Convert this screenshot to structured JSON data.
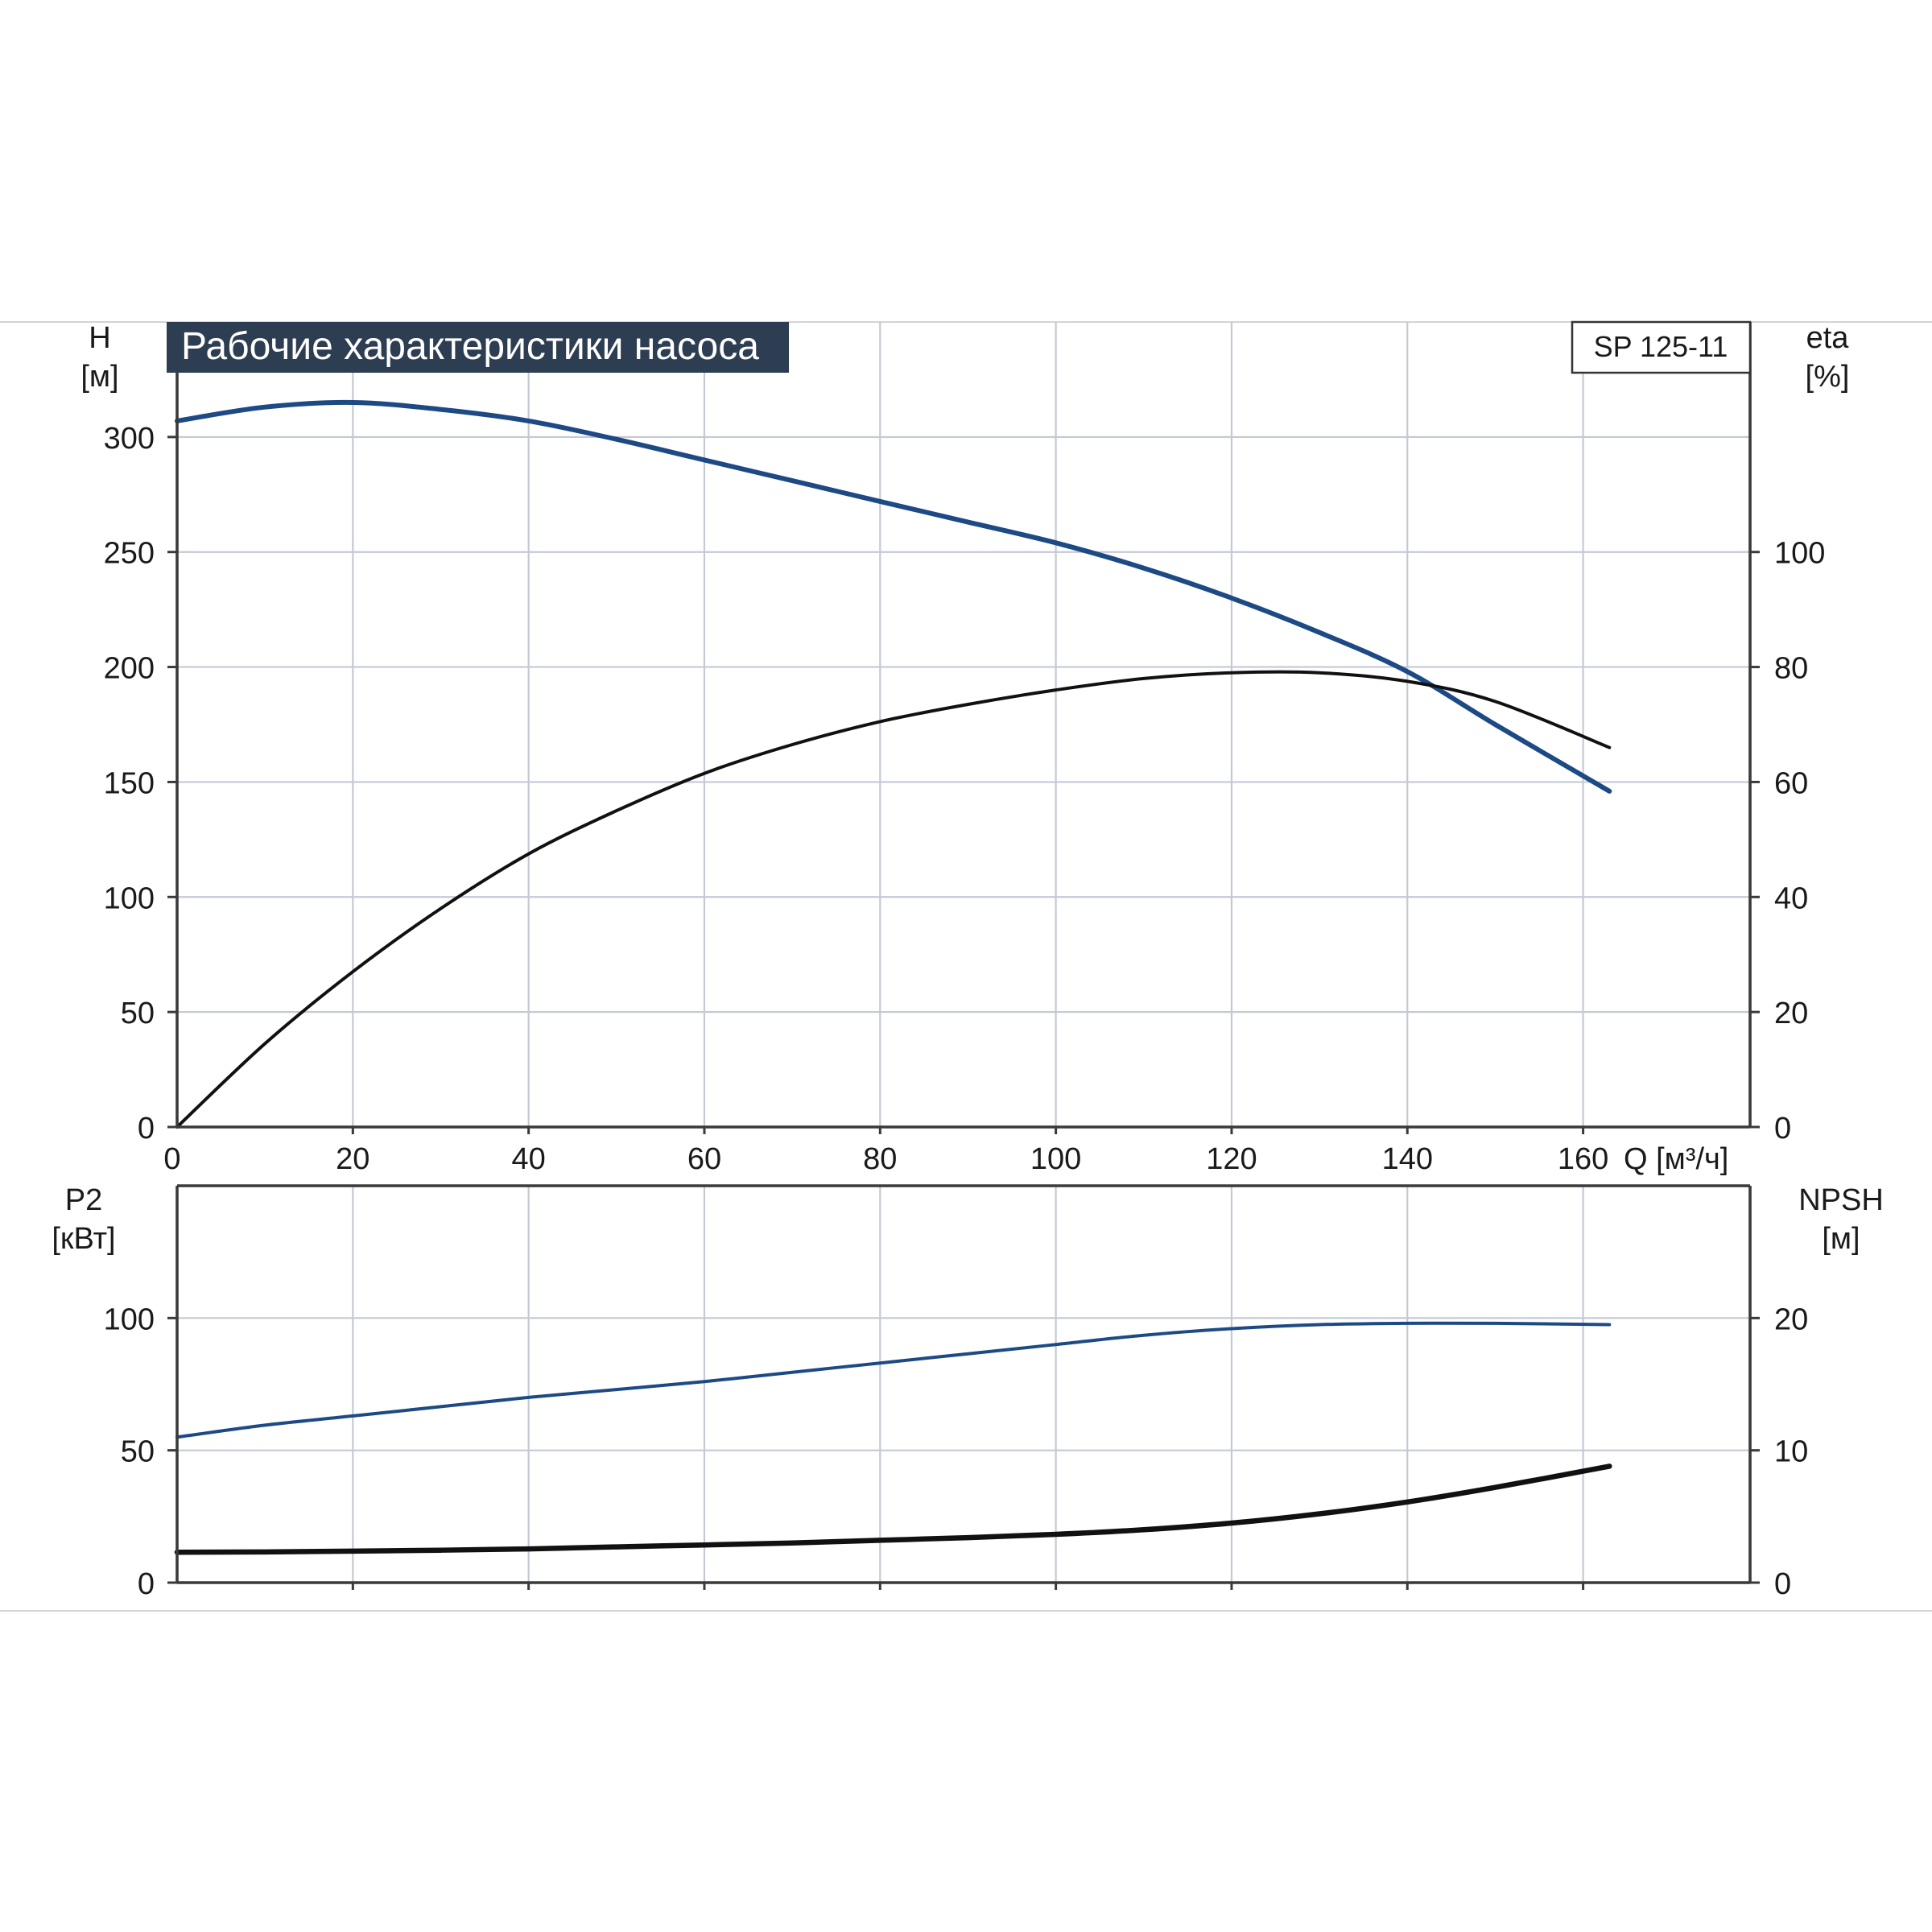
{
  "chart_data": [
    {
      "type": "line",
      "title": "Рабочие характеристики насоса",
      "model_label": "SP 125-11",
      "xlabel": "Q [м³/ч]",
      "xlim": [
        0,
        179
      ],
      "x_ticks": [
        "0",
        "20",
        "40",
        "60",
        "80",
        "100",
        "120",
        "140",
        "160"
      ],
      "left_axis": {
        "label": "H",
        "unit": "[м]",
        "ylim": [
          0,
          350
        ],
        "ticks": [
          "0",
          "50",
          "100",
          "150",
          "200",
          "250",
          "300"
        ]
      },
      "right_axis": {
        "label": "eta",
        "unit": "[%]",
        "ylim": [
          0,
          140
        ],
        "ticks": [
          "0",
          "20",
          "40",
          "60",
          "80",
          "100"
        ]
      },
      "grid": true,
      "colors": {
        "head": "#1d4a85",
        "efficiency": "#111111",
        "grid": "#c4cad4",
        "title_bg": "#2e3e52"
      },
      "series": [
        {
          "axis": "left",
          "color": "#1d4a85",
          "x": [
            0,
            10,
            20,
            30,
            40,
            50,
            60,
            70,
            80,
            90,
            100,
            110,
            120,
            130,
            140,
            150,
            163
          ],
          "y": [
            307,
            313,
            315,
            312,
            307,
            299,
            290,
            281,
            272,
            263,
            254,
            243,
            230,
            215,
            198,
            175,
            146
          ]
        },
        {
          "axis": "right",
          "color": "#111111",
          "x": [
            0,
            10,
            20,
            30,
            40,
            50,
            60,
            70,
            80,
            90,
            100,
            110,
            120,
            130,
            140,
            150,
            163
          ],
          "y": [
            0,
            14.5,
            27,
            38,
            47.5,
            55,
            61.5,
            66.5,
            70.5,
            73.5,
            76,
            78,
            79,
            79,
            77.5,
            74,
            66
          ]
        }
      ]
    },
    {
      "type": "line",
      "xlim": [
        0,
        179
      ],
      "left_axis": {
        "label": "P2",
        "unit": "[кВт]",
        "ylim": [
          0,
          150
        ],
        "ticks": [
          "0",
          "50",
          "100"
        ]
      },
      "right_axis": {
        "label": "NPSH",
        "unit": "[м]",
        "ylim": [
          0,
          30
        ],
        "ticks": [
          "0",
          "10",
          "20"
        ]
      },
      "grid": true,
      "series": [
        {
          "axis": "left",
          "color": "#1d4a85",
          "x": [
            0,
            10,
            20,
            30,
            40,
            50,
            60,
            70,
            80,
            90,
            100,
            110,
            120,
            130,
            140,
            150,
            163
          ],
          "y": [
            55,
            59.5,
            63,
            66.5,
            70,
            73,
            76,
            79.5,
            83,
            86.5,
            90,
            93.5,
            96,
            97.5,
            98,
            98,
            97.5
          ]
        },
        {
          "axis": "right",
          "color": "#111111",
          "x": [
            0,
            10,
            20,
            30,
            40,
            50,
            60,
            70,
            80,
            90,
            100,
            110,
            120,
            130,
            140,
            150,
            163
          ],
          "y": [
            2.3,
            2.32,
            2.38,
            2.45,
            2.55,
            2.7,
            2.85,
            3.0,
            3.2,
            3.4,
            3.65,
            4.0,
            4.5,
            5.2,
            6.1,
            7.2,
            8.8
          ]
        }
      ]
    }
  ]
}
